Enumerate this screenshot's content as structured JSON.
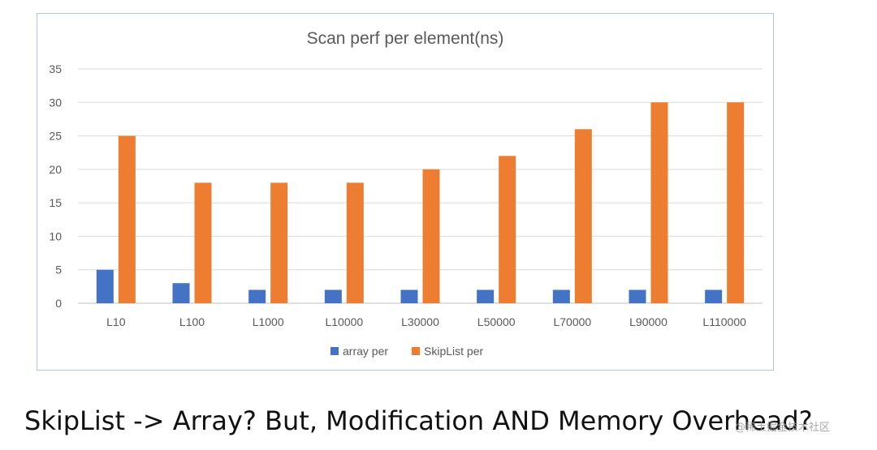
{
  "chart_data": {
    "type": "bar",
    "title": "Scan perf per element(ns)",
    "xlabel": "",
    "ylabel": "",
    "categories": [
      "L10",
      "L100",
      "L1000",
      "L10000",
      "L30000",
      "L50000",
      "L70000",
      "L90000",
      "L110000"
    ],
    "series": [
      {
        "name": "array per",
        "color": "#4472c4",
        "values": [
          5,
          3,
          2,
          2,
          2,
          2,
          2,
          2,
          2
        ]
      },
      {
        "name": "SkipList per",
        "color": "#ed7d31",
        "values": [
          25,
          18,
          18,
          18,
          20,
          22,
          26,
          30,
          30
        ]
      }
    ],
    "ylim": [
      0,
      35
    ],
    "yticks": [
      0,
      5,
      10,
      15,
      20,
      25,
      30,
      35
    ],
    "grid": true,
    "legend": "bottom"
  },
  "caption": "SkipList -> Array? But, Modification AND Memory Overhead?",
  "watermark": "@稀土掘金技术社区"
}
